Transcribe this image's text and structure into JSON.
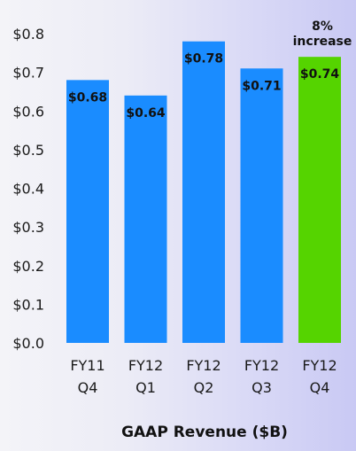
{
  "chart_data": {
    "type": "bar",
    "categories": [
      [
        "FY11",
        "Q4"
      ],
      [
        "FY12",
        "Q1"
      ],
      [
        "FY12",
        "Q2"
      ],
      [
        "FY12",
        "Q3"
      ],
      [
        "FY12",
        "Q4"
      ]
    ],
    "values": [
      0.68,
      0.64,
      0.78,
      0.71,
      0.74
    ],
    "value_labels": [
      "$0.68",
      "$0.64",
      "$0.78",
      "$0.71",
      "$0.74"
    ],
    "bar_colors": [
      "#1a8cff",
      "#1a8cff",
      "#1a8cff",
      "#1a8cff",
      "#55d400"
    ],
    "xlabel": "GAAP Revenue ($B)",
    "ylabel": "",
    "ylim": [
      0,
      0.8
    ],
    "yticks": [
      0.0,
      0.1,
      0.2,
      0.3,
      0.4,
      0.5,
      0.6,
      0.7,
      0.8
    ],
    "ytick_labels": [
      "$0.0",
      "$0.1",
      "$0.2",
      "$0.3",
      "$0.4",
      "$0.5",
      "$0.6",
      "$0.7",
      "$0.8"
    ],
    "grid": false,
    "annotation": {
      "category_index": 4,
      "lines": [
        "8%",
        "increase"
      ]
    }
  }
}
